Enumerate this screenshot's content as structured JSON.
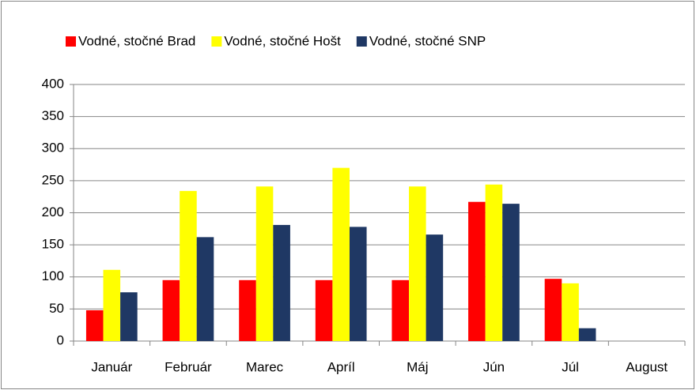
{
  "chart_data": {
    "type": "bar",
    "categories": [
      "Január",
      "Február",
      "Marec",
      "Apríl",
      "Máj",
      "Jún",
      "Júl",
      "August"
    ],
    "series": [
      {
        "name": "Vodné, stočné Brad",
        "color": "#ff0000",
        "values": [
          48,
          95,
          95,
          95,
          95,
          217,
          97,
          null
        ]
      },
      {
        "name": "Vodné, stočné Hošt",
        "color": "#ffff00",
        "values": [
          111,
          234,
          241,
          270,
          241,
          244,
          90,
          null
        ]
      },
      {
        "name": "Vodné, stočné SNP",
        "color": "#1f3864",
        "values": [
          76,
          162,
          181,
          178,
          166,
          214,
          20,
          null
        ]
      }
    ],
    "ylim": [
      0,
      400
    ],
    "yticks": [
      0,
      50,
      100,
      150,
      200,
      250,
      300,
      350,
      400
    ],
    "grid": true,
    "legend": "top"
  }
}
